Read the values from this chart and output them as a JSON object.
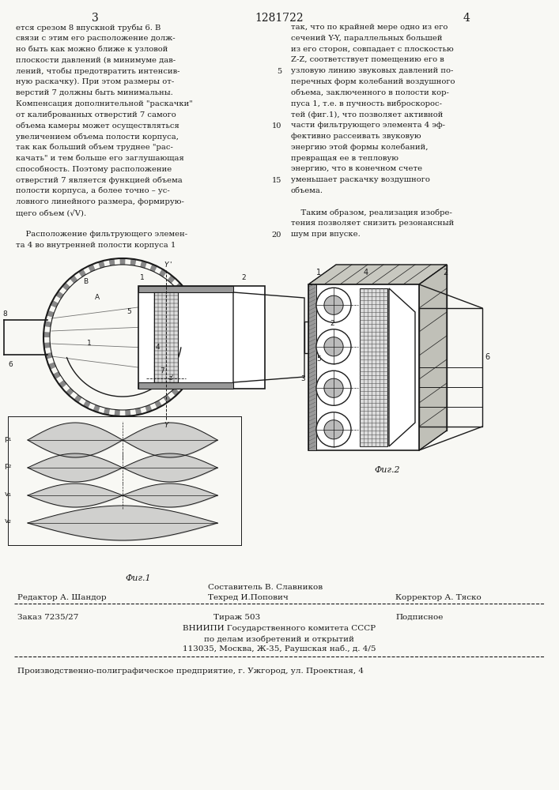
{
  "page_number_left": "3",
  "page_number_center": "1281722",
  "page_number_right": "4",
  "background_color": "#f8f8f4",
  "text_color": "#1a1a1a",
  "left_column_text": [
    "ется срезом 8 впускной трубы 6. В",
    "связи с этим его расположение долж-",
    "но быть как можно ближе к узловой",
    "плоскости давлений (в минимуме дав-",
    "лений, чтобы предотвратить интенсив-",
    "ную раскачку). При этом размеры от-",
    "верстий 7 должны быть минимальны.",
    "Компенсация дополнительной \"раскачки\"",
    "от калиброванных отверстий 7 самого",
    "объема камеры может осуществляться",
    "увеличением объема полости корпуса,",
    "так как больший объем труднее \"рас-",
    "качать\" и тем больше его заглушающая",
    "способность. Поэтому расположение",
    "отверстий 7 является функцией объема",
    "полости корпуса, а более точно – ус-",
    "ловного линейного размера, формирую-",
    "щего объем (√V).",
    "",
    "    Расположение фильтрующего элемен-",
    "та 4 во внутренней полости корпуса 1"
  ],
  "right_column_text": [
    "так, что по крайней мере одно из его",
    "сечений Y-Y, параллельных большей",
    "из его сторон, совпадает с плоскостью",
    "Z-Z, соответствует помещению его в",
    "узловую линию звуковых давлений по-",
    "перечных форм колебаний воздушного",
    "объема, заключенного в полости кор-",
    "пуса 1, т.е. в пучность виброскорос-",
    "тей (фиг.1), что позволяет активной",
    "части фильтрующего элемента 4 эф-",
    "фективно рассеивать звуковую",
    "энергию этой формы колебаний,",
    "превращая ее в тепловую",
    "энергию, что в конечном счете",
    "уменьшает раскачку воздушного",
    "объема.",
    "",
    "    Таким образом, реализация изобре-",
    "тения позволяет снизить резонансный",
    "шум при впуске."
  ],
  "line_numbers": [
    5,
    10,
    15,
    20
  ],
  "fig1_caption": "Фиг.1",
  "fig2_caption": "Фиг.2",
  "editor_line": "Редактор А. Шандор",
  "composer_line1": "Составитель В. Славников",
  "composer_line2": "Техред И.Попович",
  "corrector_line": "Корректор А. Тяско",
  "order_line": "Заказ 7235/27",
  "tirazh_line": "Тираж 503",
  "podpisnoe_line": "Подписное",
  "vniip_line1": "ВНИИПИ Государственного комитета СССР",
  "vniip_line2": "по делам изобретений и открытий",
  "vniip_line3": "113035, Москва, Ж-35, Раушская наб., д. 4/5",
  "factory_line": "Производственно-полиграфическое предприятие, г. Ужгород, ул. Проектная, 4"
}
